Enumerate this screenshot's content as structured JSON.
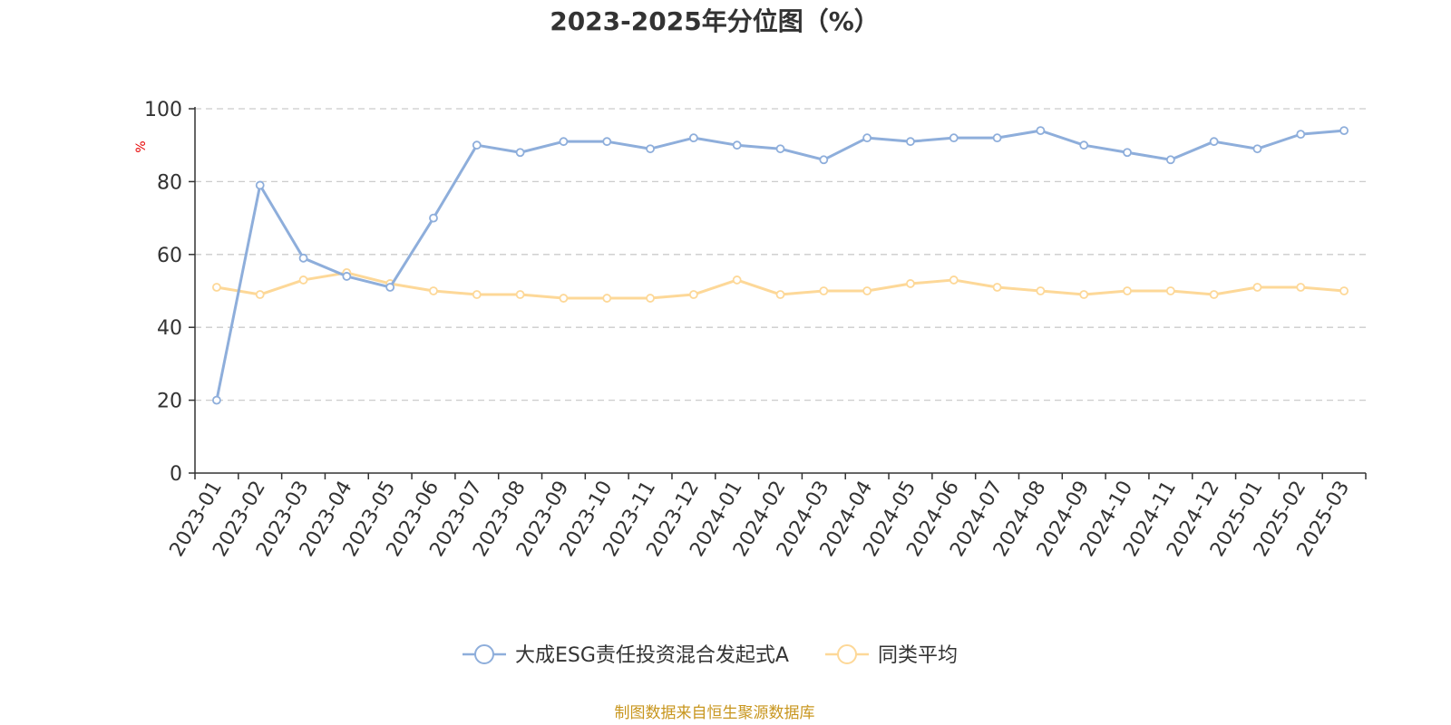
{
  "chart_data": {
    "type": "line",
    "title": "2023-2025年分位图（%）",
    "ylabel": "%",
    "ylim": [
      0,
      100
    ],
    "yticks": [
      0,
      20,
      40,
      60,
      80,
      100
    ],
    "grid": true,
    "legend_position": "bottom",
    "categories": [
      "2023-01",
      "2023-02",
      "2023-03",
      "2023-04",
      "2023-05",
      "2023-06",
      "2023-07",
      "2023-08",
      "2023-09",
      "2023-10",
      "2023-11",
      "2023-12",
      "2024-01",
      "2024-02",
      "2024-03",
      "2024-04",
      "2024-05",
      "2024-06",
      "2024-07",
      "2024-08",
      "2024-09",
      "2024-10",
      "2024-11",
      "2024-12",
      "2025-01",
      "2025-02",
      "2025-03"
    ],
    "series": [
      {
        "name": "大成ESG责任投资混合发起式A",
        "color": "#8eaedb",
        "values": [
          20,
          79,
          59,
          54,
          51,
          70,
          90,
          88,
          91,
          91,
          89,
          92,
          90,
          89,
          86,
          92,
          91,
          92,
          92,
          94,
          90,
          88,
          86,
          91,
          89,
          93,
          94
        ]
      },
      {
        "name": "同类平均",
        "color": "#fdd898",
        "values": [
          51,
          49,
          53,
          55,
          52,
          50,
          49,
          49,
          48,
          48,
          48,
          49,
          53,
          49,
          50,
          50,
          52,
          53,
          51,
          50,
          49,
          50,
          50,
          49,
          51,
          51,
          50
        ]
      }
    ]
  },
  "source_text": "制图数据来自恒生聚源数据库"
}
